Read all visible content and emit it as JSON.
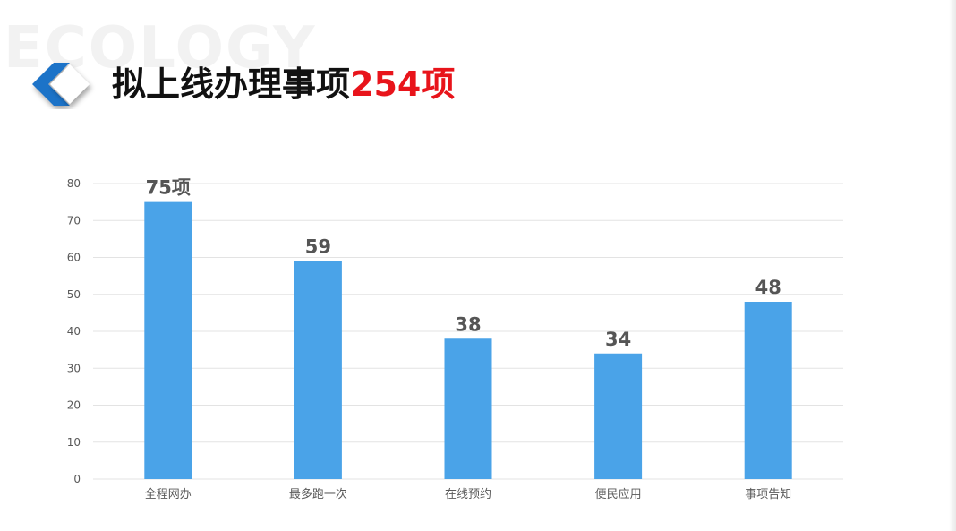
{
  "header": {
    "watermark": "ECOLOGY",
    "title_main": "拟上线办理事项",
    "title_highlight": "254项"
  },
  "colors": {
    "bar": "#4aa3e8",
    "title_highlight": "#e8141b",
    "grid": "#e3e3e3",
    "axis_text": "#595959",
    "data_label": "#555555"
  },
  "icons": {
    "logo": "blue-white-chevron-logo-icon"
  },
  "chart_data": {
    "type": "bar",
    "title": "",
    "xlabel": "",
    "ylabel": "",
    "categories": [
      "全程网办",
      "最多跑一次",
      "在线预约",
      "便民应用",
      "事项告知"
    ],
    "values": [
      75,
      59,
      38,
      34,
      48
    ],
    "data_labels": [
      "75项",
      "59",
      "38",
      "34",
      "48"
    ],
    "ylim": [
      0,
      80
    ],
    "yticks": [
      0,
      10,
      20,
      30,
      40,
      50,
      60,
      70,
      80
    ],
    "grid": true,
    "legend": "none"
  }
}
